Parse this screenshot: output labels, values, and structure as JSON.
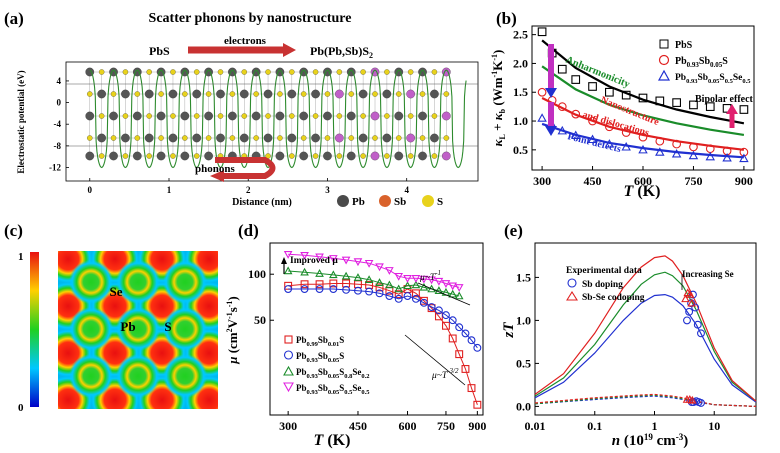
{
  "panels": {
    "a": {
      "label": "(a)",
      "title": "Scatter phonons by nanostructure",
      "left_material": "PbS",
      "right_material": "Pb(Pb,Sb)S",
      "right_material_sub": "2",
      "electrons_label": "electrons",
      "phonons_label": "phonons",
      "ylabel": "Electrostatic potential (eV)",
      "xlabel": "Distance (nm)",
      "legend": [
        {
          "label": "Pb",
          "color": "#4a4a4a"
        },
        {
          "label": "Sb",
          "color": "#d9622b"
        },
        {
          "label": "S",
          "color": "#e8d21c"
        }
      ]
    },
    "b": {
      "label": "(b)"
    },
    "c": {
      "label": "(c)",
      "scale_max": "1",
      "scale_min": "0",
      "atoms": [
        "Se",
        "Pb",
        "S"
      ]
    },
    "d": {
      "label": "(d)",
      "note": "Improved μ",
      "slope1": "μ~T",
      "slope1_exp": "-1",
      "slope2": "μ~T",
      "slope2_exp": "-3/2"
    },
    "e": {
      "label": "(e)",
      "legend_title": "Experimental data",
      "legend_items": [
        "Sb doping",
        "Sb-Se codoping"
      ],
      "annotation": "Increasing Se"
    }
  },
  "chart_data": [
    {
      "id": "a",
      "type": "line",
      "title": "Scatter phonons by nanostructure",
      "xlabel": "Distance (nm)",
      "ylabel": "Electrostatic potential (eV)",
      "xlim": [
        -0.3,
        4.9
      ],
      "ylim": [
        -14.5,
        7.5
      ],
      "xticks": [
        0,
        1,
        2,
        3,
        4
      ],
      "yticks": [
        4,
        0,
        -4,
        -8,
        -12
      ],
      "series": [
        {
          "color": "#2e8b2e",
          "period_nm": 0.3,
          "max": 6,
          "min": -12
        }
      ]
    },
    {
      "id": "b",
      "type": "scatter",
      "xlabel": "T (K)",
      "ylabel": "κL + κb (Wm-1K-1)",
      "xlim": [
        270,
        930
      ],
      "ylim": [
        0.15,
        2.65
      ],
      "xticks": [
        300,
        450,
        600,
        750,
        900
      ],
      "yticks": [
        0.5,
        1.0,
        1.5,
        2.0,
        2.5
      ],
      "annotations": [
        "Anharmonicity",
        "Nanostructure and dislocations",
        "Point defects",
        "Bipolar effect"
      ],
      "series": [
        {
          "name": "PbS",
          "color": "#000000",
          "marker": "square",
          "x": [
            300,
            330,
            360,
            400,
            450,
            500,
            550,
            600,
            650,
            700,
            750,
            800,
            850,
            900
          ],
          "y": [
            2.55,
            2.18,
            1.9,
            1.72,
            1.6,
            1.5,
            1.45,
            1.4,
            1.35,
            1.32,
            1.28,
            1.25,
            1.22,
            1.2
          ],
          "fit_x": [
            300,
            400,
            500,
            600,
            700,
            800,
            900
          ],
          "fit_y": [
            2.4,
            1.92,
            1.6,
            1.37,
            1.2,
            1.07,
            0.96
          ],
          "fit_color": "#000000"
        },
        {
          "name": "Pb0.93Sb0.05S",
          "color": "#e02020",
          "marker": "circle",
          "x": [
            300,
            330,
            360,
            400,
            450,
            500,
            550,
            600,
            650,
            700,
            750,
            800,
            850,
            900
          ],
          "y": [
            1.5,
            1.36,
            1.25,
            1.12,
            1.0,
            0.9,
            0.8,
            0.72,
            0.65,
            0.6,
            0.55,
            0.52,
            0.48,
            0.46
          ],
          "fit_x": [
            300,
            400,
            500,
            600,
            700,
            800,
            900
          ],
          "fit_y": [
            1.4,
            1.11,
            0.9,
            0.76,
            0.65,
            0.57,
            0.5
          ],
          "fit_color": "#e02020"
        },
        {
          "name": "Pb0.93Sb0.05S0.5Se0.5",
          "color": "#2030d0",
          "marker": "triangle",
          "x": [
            300,
            330,
            360,
            400,
            450,
            500,
            550,
            600,
            650,
            700,
            750,
            800,
            850,
            900
          ],
          "y": [
            1.05,
            0.93,
            0.83,
            0.75,
            0.68,
            0.6,
            0.55,
            0.5,
            0.46,
            0.43,
            0.4,
            0.38,
            0.36,
            0.35
          ],
          "fit_x": [
            300,
            400,
            500,
            600,
            700,
            800,
            900
          ],
          "fit_y": [
            0.95,
            0.76,
            0.62,
            0.53,
            0.46,
            0.41,
            0.37
          ],
          "fit_color": "#2030d0"
        },
        {
          "fit_x": [
            300,
            400,
            500,
            600,
            700,
            800,
            900
          ],
          "fit_y": [
            1.95,
            1.55,
            1.28,
            1.1,
            0.96,
            0.85,
            0.76
          ],
          "fit_color": "#1a8c2a"
        }
      ]
    },
    {
      "id": "d",
      "type": "line",
      "xlabel": "T (K)",
      "ylabel": "μ (cm2V-1s-1)",
      "scale": "log-log",
      "xlim": [
        270,
        930
      ],
      "ylim": [
        12,
        160
      ],
      "xticks": [
        300,
        450,
        600,
        750,
        900
      ],
      "yticks": [
        50,
        100
      ],
      "series": [
        {
          "name": "Pb0.99Sb0.01S",
          "color": "#e02020",
          "marker": "square",
          "x": [
            300,
            330,
            360,
            390,
            420,
            450,
            480,
            510,
            540,
            570,
            600,
            630,
            660,
            690,
            720,
            750,
            780,
            810,
            840,
            870,
            900
          ],
          "y": [
            84,
            86,
            86,
            87,
            87,
            86,
            85,
            82,
            78,
            74,
            80,
            75,
            67,
            60,
            53,
            46,
            38,
            30,
            24,
            18,
            14
          ]
        },
        {
          "name": "Pb0.93Sb0.05S",
          "color": "#2030d0",
          "marker": "circle",
          "x": [
            300,
            330,
            360,
            390,
            420,
            450,
            480,
            510,
            540,
            570,
            600,
            630,
            660,
            690,
            720,
            750,
            780,
            810,
            840,
            870,
            900
          ],
          "y": [
            80,
            80,
            80,
            80,
            79,
            78,
            77,
            75,
            72,
            69,
            72,
            69,
            65,
            61,
            58,
            54,
            50,
            45,
            41,
            37,
            33
          ]
        },
        {
          "name": "Pb0.93Sb0.05S0.8Se0.2",
          "color": "#1a8c2a",
          "marker": "triangle",
          "x": [
            300,
            330,
            360,
            390,
            420,
            450,
            480,
            510,
            540,
            570,
            600,
            630,
            660,
            690,
            720,
            750,
            780,
            810
          ],
          "y": [
            105,
            103,
            101,
            99,
            97,
            95,
            92,
            88,
            85,
            80,
            84,
            85,
            82,
            80,
            78,
            76,
            74,
            72
          ]
        },
        {
          "name": "Pb0.93Sb0.05S0.5Se0.5",
          "color": "#e020e0",
          "marker": "triangle-down",
          "x": [
            300,
            330,
            360,
            390,
            420,
            450,
            480,
            510,
            540,
            570,
            600,
            630,
            660,
            690,
            720,
            750,
            780,
            810
          ],
          "y": [
            135,
            133,
            130,
            127,
            124,
            121,
            118,
            112,
            106,
            97,
            94,
            94,
            93,
            92,
            90,
            87,
            84,
            82
          ]
        }
      ]
    },
    {
      "id": "e",
      "type": "line",
      "xlabel": "n (1019 cm-3)",
      "ylabel": "zT",
      "scale": "log-x",
      "xlim": [
        0.01,
        50
      ],
      "ylim": [
        -0.1,
        1.9
      ],
      "xticks": [
        0.01,
        0.1,
        1,
        10
      ],
      "yticks": [
        0.0,
        0.5,
        1.0,
        1.5
      ],
      "series": [
        {
          "name": "Sb doping",
          "color": "#2030d0",
          "marker": "circle",
          "x": [
            3.5,
            3.8,
            4.1,
            4.4,
            4.8,
            5.3,
            6.0,
            4.2,
            4.5,
            5.0,
            5.5,
            6.0
          ],
          "y": [
            1.0,
            1.1,
            1.2,
            1.3,
            1.15,
            0.95,
            0.85,
            0.05,
            0.05,
            0.06,
            0.05,
            0.04
          ]
        },
        {
          "name": "Sb-Se codoping",
          "color": "#e02020",
          "marker": "triangle",
          "x": [
            3.3,
            3.6,
            3.9,
            4.2,
            3.5,
            3.9,
            4.3
          ],
          "y": [
            1.25,
            1.32,
            1.3,
            1.2,
            0.08,
            0.08,
            0.07
          ]
        },
        {
          "color": "#2030d0",
          "curve": "solid",
          "x": [
            0.01,
            0.03,
            0.1,
            0.3,
            0.6,
            1,
            1.5,
            2,
            3,
            5,
            10,
            20,
            50
          ],
          "y": [
            0.1,
            0.28,
            0.62,
            1.0,
            1.2,
            1.29,
            1.3,
            1.27,
            1.17,
            0.95,
            0.55,
            0.25,
            0.05
          ]
        },
        {
          "color": "#1a8c2a",
          "curve": "solid",
          "x": [
            0.01,
            0.03,
            0.1,
            0.3,
            0.6,
            1,
            1.5,
            2,
            3,
            5,
            10,
            20,
            50
          ],
          "y": [
            0.12,
            0.33,
            0.72,
            1.18,
            1.42,
            1.53,
            1.56,
            1.52,
            1.4,
            1.12,
            0.64,
            0.28,
            0.06
          ]
        },
        {
          "color": "#e02020",
          "curve": "solid",
          "x": [
            0.01,
            0.03,
            0.1,
            0.3,
            0.6,
            1,
            1.5,
            2,
            3,
            5,
            10,
            20,
            50
          ],
          "y": [
            0.14,
            0.38,
            0.85,
            1.38,
            1.62,
            1.73,
            1.75,
            1.69,
            1.52,
            1.2,
            0.68,
            0.3,
            0.06
          ]
        },
        {
          "color": "#2030d0",
          "curve": "dashed",
          "x": [
            0.01,
            0.1,
            0.5,
            1,
            2,
            3,
            5,
            10,
            50
          ],
          "y": [
            0.03,
            0.08,
            0.11,
            0.12,
            0.1,
            0.08,
            0.05,
            0.02,
            0.0
          ]
        },
        {
          "color": "#1a8c2a",
          "curve": "dashed",
          "x": [
            0.01,
            0.1,
            0.5,
            1,
            2,
            3,
            5,
            10,
            50
          ],
          "y": [
            0.03,
            0.09,
            0.12,
            0.13,
            0.11,
            0.09,
            0.06,
            0.02,
            0.0
          ]
        },
        {
          "color": "#e02020",
          "curve": "dashed",
          "x": [
            0.01,
            0.1,
            0.5,
            1,
            2,
            3,
            5,
            10,
            50
          ],
          "y": [
            0.04,
            0.1,
            0.13,
            0.14,
            0.12,
            0.1,
            0.06,
            0.02,
            0.0
          ]
        }
      ]
    }
  ]
}
